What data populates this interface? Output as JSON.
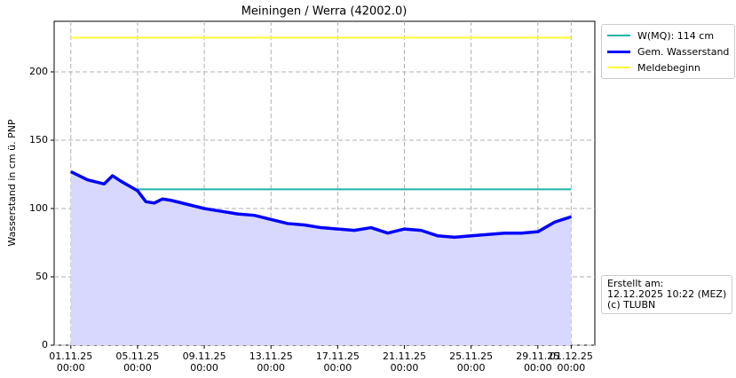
{
  "chart_data": {
    "type": "line",
    "title": "Meiningen / Werra (42002.0)",
    "y_label": "Wasserstand in cm ü. PNP",
    "annotation": "Erstellt am:\n12.12.2025 10:22 (MEZ)\n(c) TLUBN",
    "xlim": [
      "2025-10-31T00:00",
      "2025-12-02T10:00"
    ],
    "ylim": [
      0,
      237
    ],
    "yticks": [
      0,
      50,
      100,
      150,
      200
    ],
    "xticks": [
      {
        "value": "2025-11-01T00:00",
        "label": "01.11.25\n00:00"
      },
      {
        "value": "2025-11-05T00:00",
        "label": "05.11.25\n00:00"
      },
      {
        "value": "2025-11-09T00:00",
        "label": "09.11.25\n00:00"
      },
      {
        "value": "2025-11-13T00:00",
        "label": "13.11.25\n00:00"
      },
      {
        "value": "2025-11-17T00:00",
        "label": "17.11.25\n00:00"
      },
      {
        "value": "2025-11-21T00:00",
        "label": "21.11.25\n00:00"
      },
      {
        "value": "2025-11-25T00:00",
        "label": "25.11.25\n00:00"
      },
      {
        "value": "2025-11-29T00:00",
        "label": "29.11.25\n00:00"
      },
      {
        "value": "2025-12-01T00:00",
        "label": "01.12.25\n00:00"
      }
    ],
    "grid": true,
    "legend": "outside upper right",
    "series": [
      {
        "name": "W(MQ): 114 cm",
        "color": "#20b2aa",
        "width": 2,
        "x": [
          "2025-11-01T00:00",
          "2025-12-01T00:00"
        ],
        "values": [
          114,
          114
        ]
      },
      {
        "name": "Gem. Wasserstand",
        "color": "#0000ff",
        "width": 3.5,
        "fill": "#d8d8ff",
        "x": [
          "2025-11-01T00:00",
          "2025-11-02T00:00",
          "2025-11-03T00:00",
          "2025-11-03T12:00",
          "2025-11-04T00:00",
          "2025-11-05T00:00",
          "2025-11-05T12:00",
          "2025-11-06T00:00",
          "2025-11-06T12:00",
          "2025-11-07T00:00",
          "2025-11-08T00:00",
          "2025-11-09T00:00",
          "2025-11-10T00:00",
          "2025-11-11T00:00",
          "2025-11-12T00:00",
          "2025-11-13T00:00",
          "2025-11-14T00:00",
          "2025-11-15T00:00",
          "2025-11-16T00:00",
          "2025-11-17T00:00",
          "2025-11-18T00:00",
          "2025-11-19T00:00",
          "2025-11-20T00:00",
          "2025-11-21T00:00",
          "2025-11-22T00:00",
          "2025-11-23T00:00",
          "2025-11-24T00:00",
          "2025-11-25T00:00",
          "2025-11-26T00:00",
          "2025-11-27T00:00",
          "2025-11-28T00:00",
          "2025-11-29T00:00",
          "2025-11-30T00:00",
          "2025-12-01T00:00"
        ],
        "values": [
          127,
          121,
          118,
          124,
          120,
          113,
          105,
          104,
          107,
          106,
          103,
          100,
          98,
          96,
          95,
          92,
          89,
          88,
          86,
          85,
          84,
          86,
          82,
          85,
          84,
          80,
          79,
          80,
          81,
          82,
          82,
          83,
          90,
          94
        ]
      },
      {
        "name": "Meldebeginn",
        "color": "#ffff33",
        "width": 2,
        "x": [
          "2025-11-01T00:00",
          "2025-12-01T00:00"
        ],
        "values": [
          225,
          225
        ]
      }
    ]
  }
}
